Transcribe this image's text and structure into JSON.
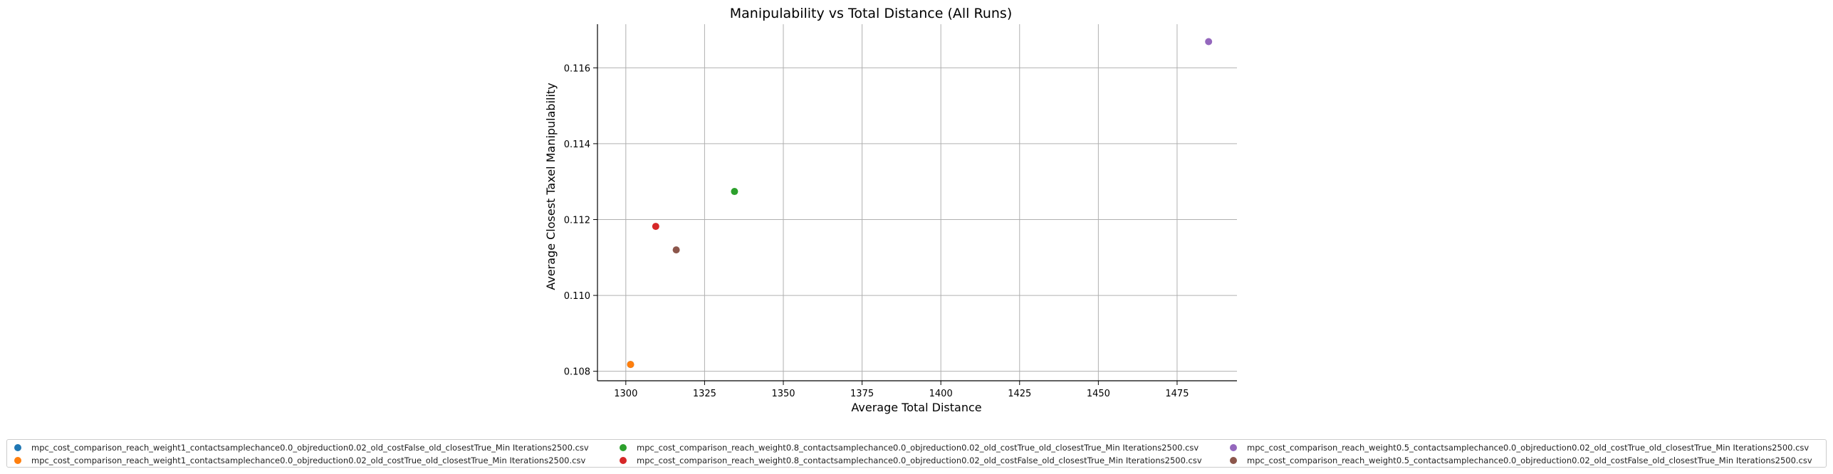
{
  "chart_data": {
    "type": "scatter",
    "title": "Manipulability vs Total Distance (All Runs)",
    "xlabel": "Average Total Distance",
    "ylabel": "Average Closest Taxel Manipulability",
    "xlim": [
      1291,
      1494
    ],
    "ylim": [
      0.10775,
      0.11715
    ],
    "xticks": [
      1300,
      1325,
      1350,
      1375,
      1400,
      1425,
      1450,
      1475
    ],
    "yticks": [
      0.108,
      0.11,
      0.112,
      0.114,
      0.116
    ],
    "ytick_labels": [
      "0.108",
      "0.110",
      "0.112",
      "0.114",
      "0.116"
    ],
    "grid": true,
    "legend_position": "bottom",
    "series": [
      {
        "name": "mpc_cost_comparison_reach_weight1_contactsamplechance0.0_objreduction0.02_old_costFalse_old_closestTrue_Min Iterations2500.csv",
        "color": "#1f77b4",
        "x": [
          1301.5
        ],
        "y": [
          0.10818
        ]
      },
      {
        "name": "mpc_cost_comparison_reach_weight1_contactsamplechance0.0_objreduction0.02_old_costTrue_old_closestTrue_Min Iterations2500.csv",
        "color": "#ff7f0e",
        "x": [
          1301.5
        ],
        "y": [
          0.10818
        ]
      },
      {
        "name": "mpc_cost_comparison_reach_weight0.8_contactsamplechance0.0_objreduction0.02_old_costTrue_old_closestTrue_Min Iterations2500.csv",
        "color": "#2ca02c",
        "x": [
          1334.5
        ],
        "y": [
          0.11274
        ]
      },
      {
        "name": "mpc_cost_comparison_reach_weight0.8_contactsamplechance0.0_objreduction0.02_old_costFalse_old_closestTrue_Min Iterations2500.csv",
        "color": "#d62728",
        "x": [
          1309.5
        ],
        "y": [
          0.11182
        ]
      },
      {
        "name": "mpc_cost_comparison_reach_weight0.5_contactsamplechance0.0_objreduction0.02_old_costTrue_old_closestTrue_Min Iterations2500.csv",
        "color": "#9467bd",
        "x": [
          1485.0
        ],
        "y": [
          0.11669
        ]
      },
      {
        "name": "mpc_cost_comparison_reach_weight0.5_contactsamplechance0.0_objreduction0.02_old_costFalse_old_closestTrue_Min Iterations2500.csv",
        "color": "#8c564b",
        "x": [
          1316.0
        ],
        "y": [
          0.1112
        ]
      }
    ]
  }
}
